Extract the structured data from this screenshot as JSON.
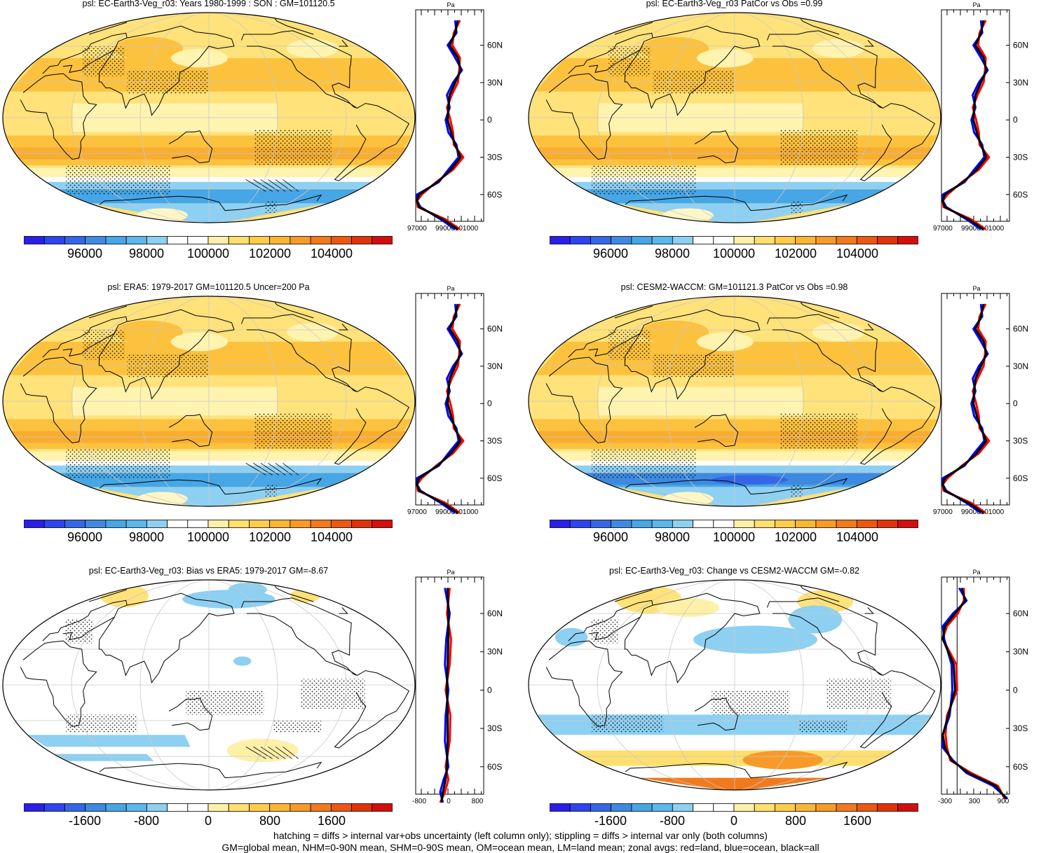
{
  "colors": {
    "full_scale": [
      "#2a1fe6",
      "#2e44ee",
      "#3467e6",
      "#3e8ae0",
      "#46a6e6",
      "#5ab8ee",
      "#8dd0f2",
      "#ffffff",
      "#ffffff",
      "#fff0a8",
      "#ffdf6e",
      "#ffcc4a",
      "#fbb535",
      "#f89a28",
      "#f27a1c",
      "#ea5812",
      "#e0330c",
      "#d40e0e"
    ],
    "bias_scale": [
      "#2a1fe6",
      "#2e44ee",
      "#3467e6",
      "#3e8ae0",
      "#46a6e6",
      "#5ab8ee",
      "#8dd0f2",
      "#ffffff",
      "#ffffff",
      "#fff0a8",
      "#ffdf6e",
      "#ffcc4a",
      "#fbb535",
      "#f89a28",
      "#f27a1c",
      "#ea5812",
      "#e0330c",
      "#d40e0e"
    ],
    "land": "red",
    "ocean": "blue",
    "all": "black"
  },
  "panels": [
    {
      "title": "psl: EC-Earth3-Veg_r03: Years 1980-1999 : SON : GM=101120.5",
      "kind": "full",
      "variant": "model",
      "zonal_xticks": [
        "97000",
        "99000101000"
      ],
      "zonal_unit": "Pa",
      "lat_labels": [
        "60N",
        "30N",
        "0",
        "30S",
        "60S"
      ]
    },
    {
      "title": "psl: EC-Earth3-Veg_r03 PatCor vs Obs =0.99",
      "kind": "full",
      "variant": "model2",
      "zonal_xticks": [
        "97000",
        "99000101000"
      ],
      "zonal_unit": "Pa",
      "lat_labels": [
        "60N",
        "30N",
        "0",
        "30S",
        "60S"
      ]
    },
    {
      "title": "psl: ERA5: 1979-2017 GM=101120.5 Uncer=200 Pa",
      "kind": "full",
      "variant": "obs",
      "zonal_xticks": [
        "97000",
        "99000101000"
      ],
      "zonal_unit": "Pa",
      "lat_labels": [
        "60N",
        "30N",
        "0",
        "30S",
        "60S"
      ]
    },
    {
      "title": "psl: CESM2-WACCM: GM=101121.3 PatCor vs Obs =0.98",
      "kind": "full",
      "variant": "cesm",
      "zonal_xticks": [
        "97000",
        "99000101000"
      ],
      "zonal_unit": "Pa",
      "lat_labels": [
        "60N",
        "30N",
        "0",
        "30S",
        "60S"
      ]
    },
    {
      "title": "psl: EC-Earth3-Veg_r03: Bias vs ERA5: 1979-2017  GM=-8.67",
      "kind": "bias",
      "variant": "bias",
      "zonal_xticks": [
        "-800",
        "0",
        "800"
      ],
      "zonal_unit": "Pa",
      "lat_labels": [
        "60N",
        "30N",
        "0",
        "30S",
        "60S"
      ]
    },
    {
      "title": "psl: EC-Earth3-Veg_r03: Change vs CESM2-WACCM GM=-0.82",
      "kind": "bias",
      "variant": "change",
      "zonal_xticks": [
        "-300",
        "300",
        "900"
      ],
      "zonal_unit": "Pa",
      "lat_labels": [
        "60N",
        "30N",
        "0",
        "30S",
        "60S"
      ]
    }
  ],
  "colorbars": {
    "full": {
      "labels": [
        "96000",
        "98000",
        "100000",
        "102000",
        "104000"
      ],
      "values": [
        96000,
        98000,
        100000,
        102000,
        104000
      ]
    },
    "bias": {
      "labels": [
        "-1600",
        "-800",
        "0",
        "800",
        "1600"
      ],
      "values": [
        -1600,
        -800,
        0,
        800,
        1600
      ]
    }
  },
  "footer": {
    "line1": "hatching = diffs > internal var+obs uncertainty (left column only); stippling = diffs > internal var only (both columns)",
    "line2": "GM=global mean, NHM=0-90N mean, SHM=0-90S mean, OM=ocean mean, LM=land mean; zonal avgs: red=land, blue=ocean, black=all"
  },
  "chart_data": [
    {
      "type": "heatmap",
      "title": "psl: EC-Earth3-Veg_r03: Years 1980-1999 : SON : GM=101120.5",
      "colorbar": [
        96000,
        98000,
        100000,
        102000,
        104000
      ],
      "zonal_mean_profile": {
        "xlabel": "Pa",
        "lat": [
          80,
          60,
          45,
          30,
          15,
          0,
          -15,
          -30,
          -45,
          -60,
          -70,
          -80
        ],
        "all": [
          101600,
          101500,
          101800,
          101500,
          101200,
          101000,
          101300,
          101600,
          100500,
          98500,
          98300,
          99500
        ]
      }
    },
    {
      "type": "heatmap",
      "title": "psl: EC-Earth3-Veg_r03 PatCor vs Obs =0.99",
      "colorbar": [
        96000,
        98000,
        100000,
        102000,
        104000
      ]
    },
    {
      "type": "heatmap",
      "title": "psl: ERA5: 1979-2017 GM=101120.5 Uncer=200 Pa",
      "colorbar": [
        96000,
        98000,
        100000,
        102000,
        104000
      ]
    },
    {
      "type": "heatmap",
      "title": "psl: CESM2-WACCM: GM=101121.3 PatCor vs Obs =0.98",
      "colorbar": [
        96000,
        98000,
        100000,
        102000,
        104000
      ]
    },
    {
      "type": "heatmap",
      "title": "psl: EC-Earth3-Veg_r03: Bias vs ERA5: 1979-2017  GM=-8.67",
      "colorbar": [
        -1600,
        -800,
        0,
        800,
        1600
      ]
    },
    {
      "type": "heatmap",
      "title": "psl: EC-Earth3-Veg_r03: Change vs CESM2-WACCM GM=-0.82",
      "colorbar": [
        -1600,
        -800,
        0,
        800,
        1600
      ]
    }
  ]
}
